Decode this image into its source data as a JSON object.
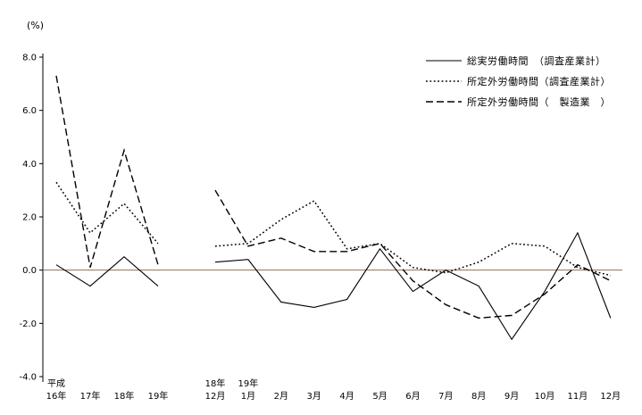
{
  "page": {
    "background": "#ffffff"
  },
  "chart_data": {
    "type": "line",
    "title": "",
    "xlabel": "",
    "ylabel": "(%)",
    "ylim": [
      -4.0,
      8.0
    ],
    "yticks": [
      8.0,
      6.0,
      4.0,
      2.0,
      0.0,
      -2.0,
      -4.0
    ],
    "grid": false,
    "legend_position": "top-right",
    "line_color": "#000000",
    "zero_line_color": "#8b7355",
    "axis_color": "#000000",
    "x_groups": [
      {
        "name": "annual",
        "labels": [
          [
            "平成",
            "16年"
          ],
          [
            "",
            "17年"
          ],
          [
            "",
            "18年"
          ],
          [
            "",
            "19年"
          ]
        ]
      },
      {
        "name": "monthly",
        "labels": [
          [
            "18年",
            "12月"
          ],
          [
            "19年",
            "1月"
          ],
          [
            "",
            "2月"
          ],
          [
            "",
            "3月"
          ],
          [
            "",
            "4月"
          ],
          [
            "",
            "5月"
          ],
          [
            "",
            "6月"
          ],
          [
            "",
            "7月"
          ],
          [
            "",
            "8月"
          ],
          [
            "",
            "9月"
          ],
          [
            "",
            "10月"
          ],
          [
            "",
            "11月"
          ],
          [
            "",
            "12月"
          ]
        ]
      }
    ],
    "series": [
      {
        "name": "総実労働時間　（調査産業計）",
        "style": "solid",
        "annual": [
          0.2,
          -0.6,
          0.5,
          -0.6
        ],
        "monthly": [
          0.3,
          0.4,
          -1.2,
          -1.4,
          -1.1,
          0.8,
          -0.8,
          0.0,
          -0.6,
          -2.6,
          -0.8,
          1.4,
          -1.8
        ]
      },
      {
        "name": "所定外労働時間（調査産業計）",
        "style": "dotted",
        "annual": [
          3.3,
          1.4,
          2.5,
          1.0
        ],
        "monthly": [
          0.9,
          1.0,
          1.9,
          2.6,
          0.8,
          1.0,
          0.1,
          -0.1,
          0.3,
          1.0,
          0.9,
          0.1,
          -0.2
        ]
      },
      {
        "name": "所定外労働時間（　製造業　）",
        "style": "dashed",
        "annual": [
          7.3,
          0.1,
          4.5,
          0.2
        ],
        "monthly": [
          3.0,
          0.9,
          1.2,
          0.7,
          0.7,
          1.0,
          -0.4,
          -1.3,
          -1.8,
          -1.7,
          -0.9,
          0.2,
          -0.4
        ]
      }
    ]
  }
}
